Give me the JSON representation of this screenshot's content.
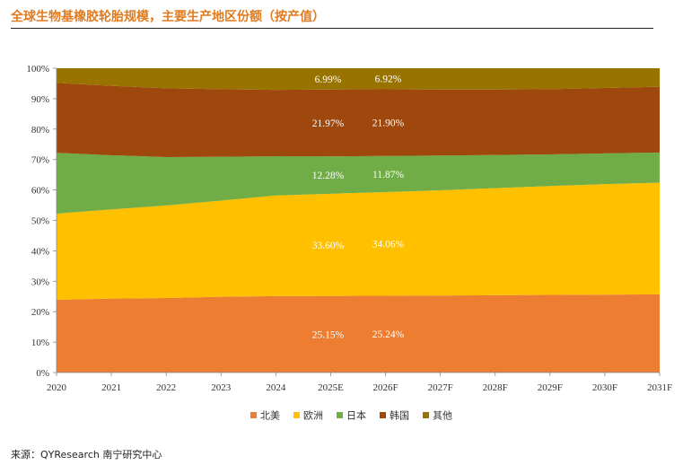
{
  "chart_data": {
    "type": "area",
    "stacked": true,
    "title": "全球生物基橡胶轮胎规模，主要生产地区份额（按产值）",
    "categories": [
      "2020",
      "2021",
      "2022",
      "2023",
      "2024",
      "2025E",
      "2026F",
      "2027F",
      "2028F",
      "2029F",
      "2030F",
      "2031F"
    ],
    "y_ticks": [
      "0%",
      "10%",
      "20%",
      "30%",
      "40%",
      "50%",
      "60%",
      "70%",
      "80%",
      "90%",
      "100%"
    ],
    "ylim": [
      0,
      100
    ],
    "series": [
      {
        "name": "北美",
        "color": "#ED7D31",
        "values": [
          23.9,
          24.3,
          24.5,
          24.9,
          25.1,
          25.15,
          25.24,
          25.3,
          25.4,
          25.5,
          25.6,
          25.7
        ]
      },
      {
        "name": "欧洲",
        "color": "#FFC000",
        "values": [
          28.3,
          29.3,
          30.4,
          31.6,
          33.1,
          33.6,
          34.06,
          34.6,
          35.2,
          35.8,
          36.3,
          36.7
        ]
      },
      {
        "name": "日本",
        "color": "#70AD47",
        "values": [
          20.0,
          17.8,
          15.9,
          14.4,
          12.9,
          12.28,
          11.87,
          11.4,
          10.9,
          10.4,
          10.1,
          9.9
        ]
      },
      {
        "name": "韩国",
        "color": "#9E480E",
        "values": [
          23.0,
          22.8,
          22.6,
          22.2,
          21.8,
          21.97,
          21.9,
          21.7,
          21.5,
          21.4,
          21.5,
          21.6
        ]
      },
      {
        "name": "其他",
        "color": "#997300",
        "values": [
          4.8,
          5.8,
          6.6,
          6.9,
          7.1,
          6.99,
          6.92,
          7.0,
          7.0,
          6.9,
          6.5,
          6.1
        ]
      }
    ],
    "data_labels": [
      {
        "series": "北美",
        "category": "2025E",
        "text": "25.15%"
      },
      {
        "series": "北美",
        "category": "2026F",
        "text": "25.24%"
      },
      {
        "series": "欧洲",
        "category": "2025E",
        "text": "33.60%"
      },
      {
        "series": "欧洲",
        "category": "2026F",
        "text": "34.06%"
      },
      {
        "series": "日本",
        "category": "2025E",
        "text": "12.28%"
      },
      {
        "series": "日本",
        "category": "2026F",
        "text": "11.87%"
      },
      {
        "series": "韩国",
        "category": "2025E",
        "text": "21.97%"
      },
      {
        "series": "韩国",
        "category": "2026F",
        "text": "21.90%"
      },
      {
        "series": "其他",
        "category": "2025E",
        "text": "6.99%"
      },
      {
        "series": "其他",
        "category": "2026F",
        "text": "6.92%"
      }
    ],
    "legend_position": "bottom"
  },
  "source": "来源：QYResearch 南宁研究中心"
}
